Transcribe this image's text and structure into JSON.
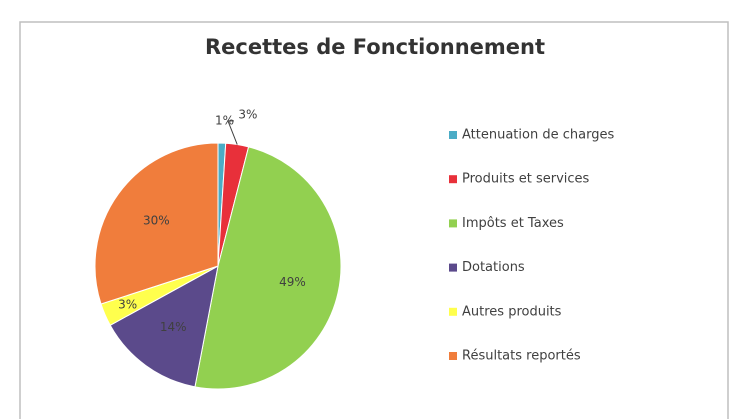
{
  "chart_data": {
    "type": "pie",
    "title": "Recettes de Fonctionnement",
    "categories": [
      "Attenuation de charges",
      "Produits et services",
      "Impôts et Taxes",
      "Dotations",
      "Autres produits",
      "Résultats reportés"
    ],
    "values": [
      1,
      3,
      49,
      14,
      3,
      30
    ],
    "value_labels": [
      "1%",
      "3%",
      "49%",
      "14%",
      "3%",
      "30%"
    ],
    "colors": [
      "#4bacc6",
      "#e8303a",
      "#92d050",
      "#5b4a8b",
      "#ffff4d",
      "#f07d3c"
    ],
    "legend": "right"
  }
}
